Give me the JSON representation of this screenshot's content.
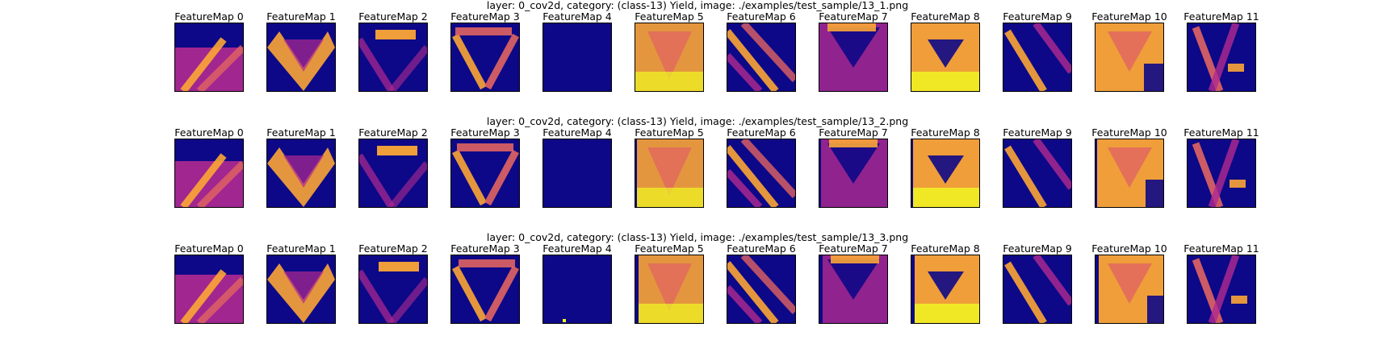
{
  "rows": [
    {
      "title": "layer: 0_cov2d, category: (class-13) Yield, image: ./examples/test_sample/13_1.png",
      "maps": [
        {
          "label": "FeatureMap 0"
        },
        {
          "label": "FeatureMap 1"
        },
        {
          "label": "FeatureMap 2"
        },
        {
          "label": "FeatureMap 3"
        },
        {
          "label": "FeatureMap 4"
        },
        {
          "label": "FeatureMap 5"
        },
        {
          "label": "FeatureMap 6"
        },
        {
          "label": "FeatureMap 7"
        },
        {
          "label": "FeatureMap 8"
        },
        {
          "label": "FeatureMap 9"
        },
        {
          "label": "FeatureMap 10"
        },
        {
          "label": "FeatureMap 11"
        }
      ]
    },
    {
      "title": "layer: 0_cov2d, category: (class-13) Yield, image: ./examples/test_sample/13_2.png",
      "maps": [
        {
          "label": "FeatureMap 0"
        },
        {
          "label": "FeatureMap 1"
        },
        {
          "label": "FeatureMap 2"
        },
        {
          "label": "FeatureMap 3"
        },
        {
          "label": "FeatureMap 4"
        },
        {
          "label": "FeatureMap 5"
        },
        {
          "label": "FeatureMap 6"
        },
        {
          "label": "FeatureMap 7"
        },
        {
          "label": "FeatureMap 8"
        },
        {
          "label": "FeatureMap 9"
        },
        {
          "label": "FeatureMap 10"
        },
        {
          "label": "FeatureMap 11"
        }
      ]
    },
    {
      "title": "layer: 0_cov2d, category: (class-13) Yield, image: ./examples/test_sample/13_3.png",
      "maps": [
        {
          "label": "FeatureMap 0"
        },
        {
          "label": "FeatureMap 1"
        },
        {
          "label": "FeatureMap 2"
        },
        {
          "label": "FeatureMap 3"
        },
        {
          "label": "FeatureMap 4"
        },
        {
          "label": "FeatureMap 5"
        },
        {
          "label": "FeatureMap 6"
        },
        {
          "label": "FeatureMap 7"
        },
        {
          "label": "FeatureMap 8"
        },
        {
          "label": "FeatureMap 9"
        },
        {
          "label": "FeatureMap 10"
        },
        {
          "label": "FeatureMap 11"
        }
      ]
    }
  ],
  "colormap": "plasma",
  "colors": {
    "low": "#0d0887",
    "mid_low": "#6a00a8",
    "mid": "#b12a90",
    "mid_high": "#e16462",
    "high_orange": "#fca636",
    "high": "#f0f921"
  }
}
